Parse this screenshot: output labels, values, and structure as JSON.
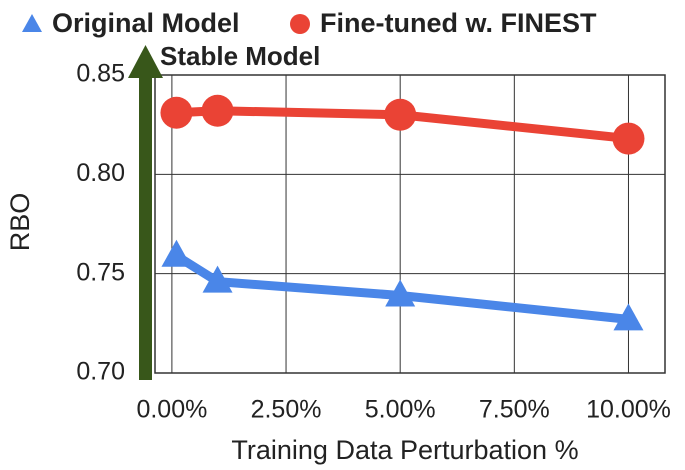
{
  "chart_data": {
    "type": "line",
    "x_label": "Training Data Perturbation %",
    "y_label": "RBO",
    "annotation": "Stable Model",
    "annotation_color": "#38571a",
    "series": [
      {
        "name": "Original Model",
        "color": "#4a86e8",
        "marker": "triangle",
        "x": [
          0.1,
          1,
          5,
          10
        ],
        "values": [
          0.759,
          0.746,
          0.739,
          0.727
        ]
      },
      {
        "name": "Fine-tuned w. FINEST",
        "color": "#ea4335",
        "marker": "circle",
        "x": [
          0.1,
          1,
          5,
          10
        ],
        "values": [
          0.831,
          0.832,
          0.83,
          0.818
        ]
      }
    ],
    "xlim": [
      -0.37,
      10.8
    ],
    "xticks": [
      {
        "value": 0,
        "label": "0.00%"
      },
      {
        "value": 2.5,
        "label": "2.50%"
      },
      {
        "value": 5,
        "label": "5.00%"
      },
      {
        "value": 7.5,
        "label": "7.50%"
      },
      {
        "value": 10,
        "label": "10.00%"
      }
    ],
    "ylim": [
      0.7,
      0.85
    ],
    "yticks": [
      {
        "value": 0.7,
        "label": "0.70"
      },
      {
        "value": 0.75,
        "label": "0.75"
      },
      {
        "value": 0.8,
        "label": "0.80"
      },
      0.85
    ],
    "grid": true,
    "legend": "top"
  }
}
